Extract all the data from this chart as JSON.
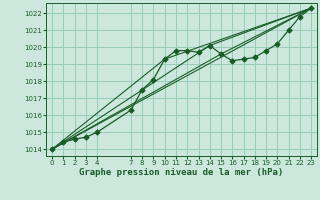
{
  "title": "Graphe pression niveau de la mer (hPa)",
  "background_color": "#cce8dc",
  "plot_bg_color": "#cce8dc",
  "grid_color": "#99ccbb",
  "line_color": "#1a5c28",
  "xlabel_color": "#1a5c28",
  "ylim": [
    1013.6,
    1022.6
  ],
  "xlim": [
    -0.5,
    23.5
  ],
  "yticks": [
    1014,
    1015,
    1016,
    1017,
    1018,
    1019,
    1020,
    1021,
    1022
  ],
  "xticks": [
    0,
    1,
    2,
    3,
    4,
    7,
    8,
    9,
    10,
    11,
    12,
    13,
    14,
    15,
    16,
    17,
    18,
    19,
    20,
    21,
    22,
    23
  ],
  "series1_x": [
    0,
    1,
    2,
    3,
    4,
    7,
    8,
    9,
    10,
    11,
    12,
    13,
    14,
    15,
    16,
    17,
    18,
    19,
    20,
    21,
    22,
    23
  ],
  "series1_y": [
    1014.0,
    1014.4,
    1014.6,
    1014.7,
    1015.0,
    1016.3,
    1017.5,
    1018.1,
    1019.3,
    1019.8,
    1019.8,
    1019.7,
    1020.1,
    1019.6,
    1019.2,
    1019.3,
    1019.4,
    1019.8,
    1020.2,
    1021.0,
    1021.8,
    1022.3
  ],
  "series2_x": [
    0,
    23
  ],
  "series2_y": [
    1014.0,
    1022.3
  ],
  "series3_x": [
    0,
    14,
    23
  ],
  "series3_y": [
    1014.0,
    1020.1,
    1022.3
  ],
  "series4_x": [
    0,
    15,
    23
  ],
  "series4_y": [
    1014.0,
    1019.6,
    1022.3
  ],
  "series5_x": [
    0,
    10,
    23
  ],
  "series5_y": [
    1014.0,
    1019.3,
    1022.3
  ]
}
